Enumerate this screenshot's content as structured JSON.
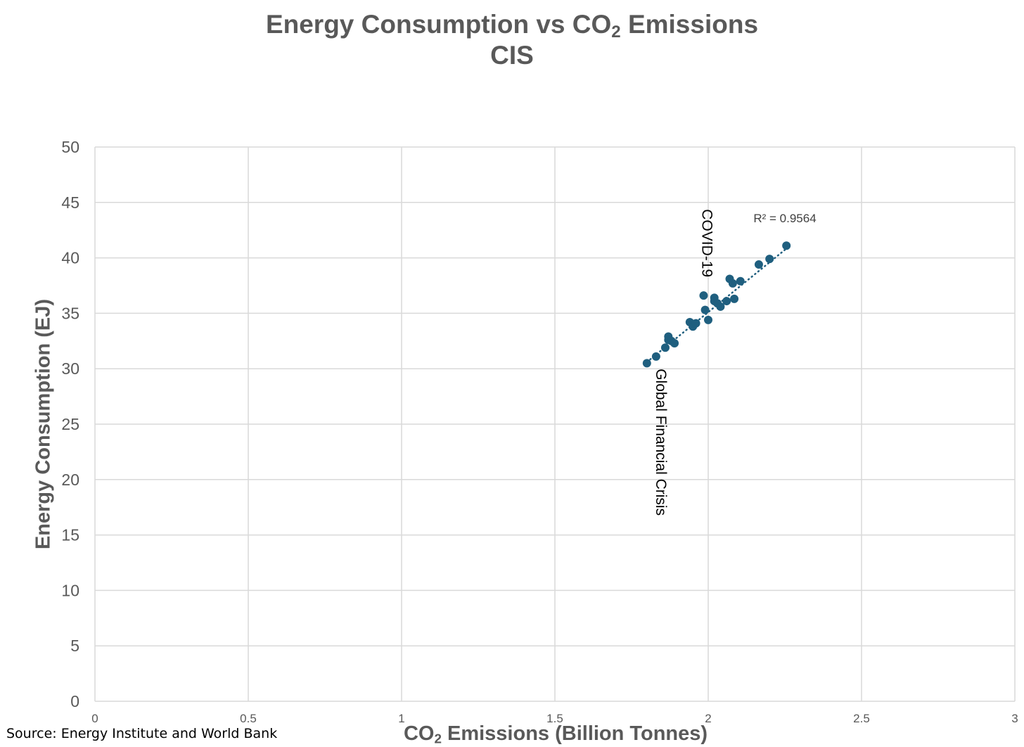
{
  "title": {
    "line1_prefix": "Energy Consumption vs CO",
    "line1_sub": "2",
    "line1_suffix": " Emissions",
    "line2": "CIS"
  },
  "source": "Source: Energy Institute and World Bank",
  "chart_data": {
    "type": "scatter",
    "title": "Energy Consumption vs CO2 Emissions CIS",
    "xlabel": {
      "prefix": "CO",
      "sub": "2",
      "suffix": " Emissions (Billion Tonnes)"
    },
    "ylabel": "Energy Consumption (EJ)",
    "xlim": [
      0,
      3
    ],
    "ylim": [
      0,
      50
    ],
    "xticks": [
      0,
      0.5,
      1,
      1.5,
      2,
      2.5,
      3
    ],
    "xtick_labels": [
      "0",
      "0.5",
      "1",
      "1.5",
      "2",
      "2.5",
      "3"
    ],
    "yticks": [
      0,
      5,
      10,
      15,
      20,
      25,
      30,
      35,
      40,
      45,
      50
    ],
    "ytick_labels": [
      "0",
      "5",
      "10",
      "15",
      "20",
      "25",
      "30",
      "35",
      "40",
      "45",
      "50"
    ],
    "grid": true,
    "marker_color": "#1f5f7f",
    "series": [
      {
        "name": "CIS",
        "points": [
          [
            1.8,
            30.5
          ],
          [
            1.83,
            31.1
          ],
          [
            1.86,
            31.9
          ],
          [
            1.87,
            32.6
          ],
          [
            1.87,
            32.9
          ],
          [
            1.88,
            32.5
          ],
          [
            1.89,
            32.3
          ],
          [
            1.94,
            34.2
          ],
          [
            1.95,
            33.8
          ],
          [
            1.96,
            34.1
          ],
          [
            1.985,
            36.6
          ],
          [
            1.99,
            35.3
          ],
          [
            2.0,
            34.4
          ],
          [
            2.02,
            36.4
          ],
          [
            2.02,
            36.1
          ],
          [
            2.03,
            35.9
          ],
          [
            2.04,
            35.6
          ],
          [
            2.06,
            36.1
          ],
          [
            2.07,
            38.1
          ],
          [
            2.08,
            37.7
          ],
          [
            2.085,
            36.3
          ],
          [
            2.105,
            37.9
          ],
          [
            2.165,
            39.4
          ],
          [
            2.2,
            39.9
          ],
          [
            2.255,
            41.1
          ]
        ]
      }
    ],
    "trendline": {
      "style": "dotted",
      "x_range": [
        1.8,
        2.255
      ],
      "slope": 22.5,
      "intercept": -9.9
    },
    "annotations": [
      {
        "text": "R² = 0.9564",
        "x": 2.25,
        "y": 43.2,
        "rotation": 0
      },
      {
        "text": "COVID-19",
        "x": 1.98,
        "y": 44.4,
        "rotation": 90
      },
      {
        "text": "Global Financial Crisis",
        "x": 1.83,
        "y": 30.0,
        "rotation": 90
      }
    ]
  }
}
